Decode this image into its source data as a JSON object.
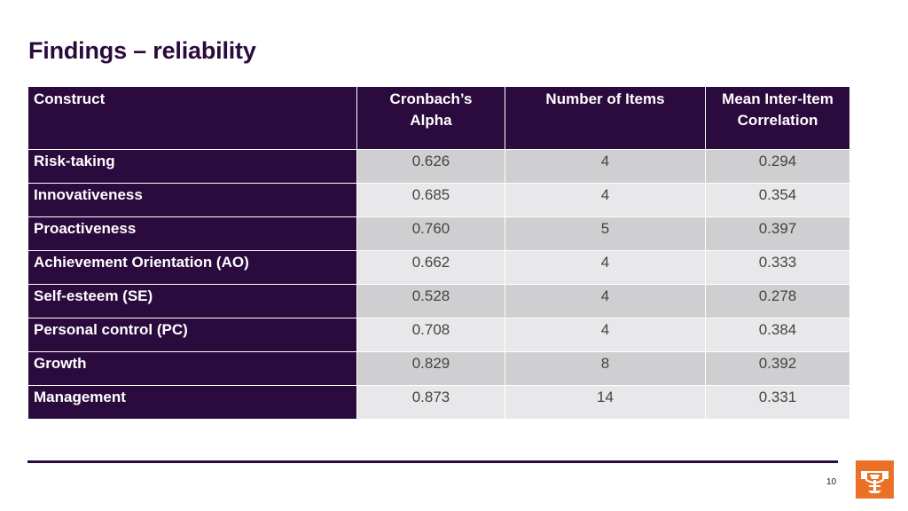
{
  "title": "Findings – reliability",
  "table": {
    "headers": {
      "construct": "Construct",
      "alpha_line1": "Cronbach’s",
      "alpha_line2": "Alpha",
      "items": "Number of Items",
      "mic_line1": "Mean Inter-Item",
      "mic_line2": "Correlation"
    },
    "rows": [
      {
        "construct": "Risk-taking",
        "alpha": "0.626",
        "items": "4",
        "mic": "0.294"
      },
      {
        "construct": "Innovativeness",
        "alpha": "0.685",
        "items": "4",
        "mic": "0.354"
      },
      {
        "construct": "Proactiveness",
        "alpha": "0.760",
        "items": "5",
        "mic": "0.397"
      },
      {
        "construct": "Achievement Orientation (AO)",
        "alpha": "0.662",
        "items": "4",
        "mic": "0.333"
      },
      {
        "construct": "Self-esteem (SE)",
        "alpha": "0.528",
        "items": "4",
        "mic": "0.278"
      },
      {
        "construct": "Personal control (PC)",
        "alpha": "0.708",
        "items": "4",
        "mic": "0.384"
      },
      {
        "construct": "Growth",
        "alpha": "0.829",
        "items": "8",
        "mic": "0.392"
      },
      {
        "construct": "Management",
        "alpha": "0.873",
        "items": "14",
        "mic": "0.331"
      }
    ]
  },
  "footer": {
    "page_number": "10",
    "logo_icon": "university-crest-icon"
  },
  "colors": {
    "header_bg": "#2b0a3d",
    "row_band_dark": "#cfcfd1",
    "row_band_light": "#e8e8ea",
    "logo_bg": "#ea7125"
  }
}
